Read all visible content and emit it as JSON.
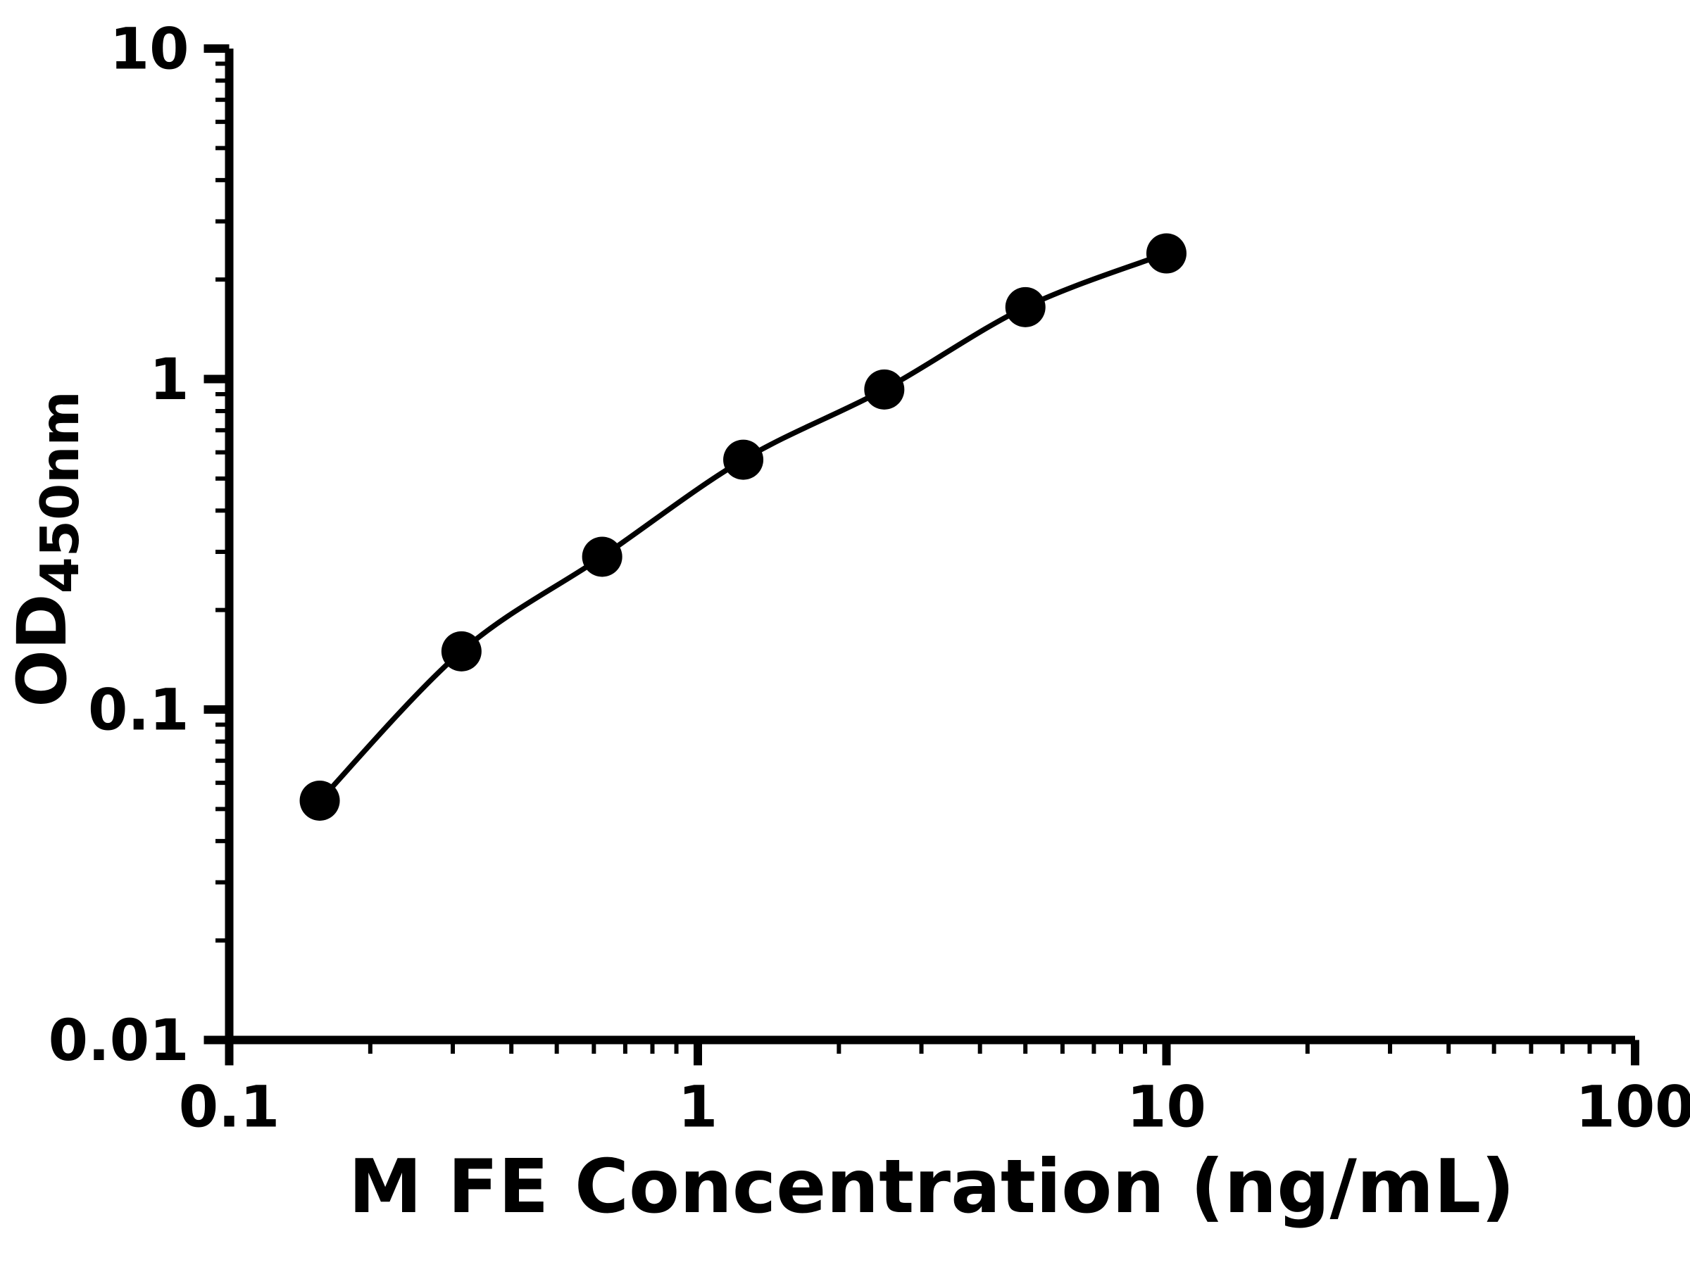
{
  "chart_data": {
    "type": "scatter",
    "title": "",
    "xlabel": "M FE Concentration (ng/mL)",
    "ylabel_main": "OD",
    "ylabel_sub": "450nm",
    "x_scale": "log",
    "y_scale": "log",
    "xlim": [
      0.1,
      100
    ],
    "ylim": [
      0.01,
      10
    ],
    "x_ticks": [
      0.1,
      1,
      10,
      100
    ],
    "x_tick_labels": [
      "0.1",
      "1",
      "10",
      "100"
    ],
    "y_ticks": [
      0.01,
      0.1,
      1,
      10
    ],
    "y_tick_labels": [
      "0.01",
      "0.1",
      "1",
      "10"
    ],
    "grid": false,
    "legend": false,
    "colors": {
      "ink": "#000000",
      "background": "#ffffff"
    },
    "series": [
      {
        "name": "standard-curve",
        "marker": "circle",
        "line": true,
        "color": "#000000",
        "x": [
          0.156,
          0.313,
          0.625,
          1.25,
          2.5,
          5,
          10
        ],
        "y": [
          0.053,
          0.15,
          0.29,
          0.57,
          0.93,
          1.65,
          2.4
        ]
      }
    ]
  }
}
